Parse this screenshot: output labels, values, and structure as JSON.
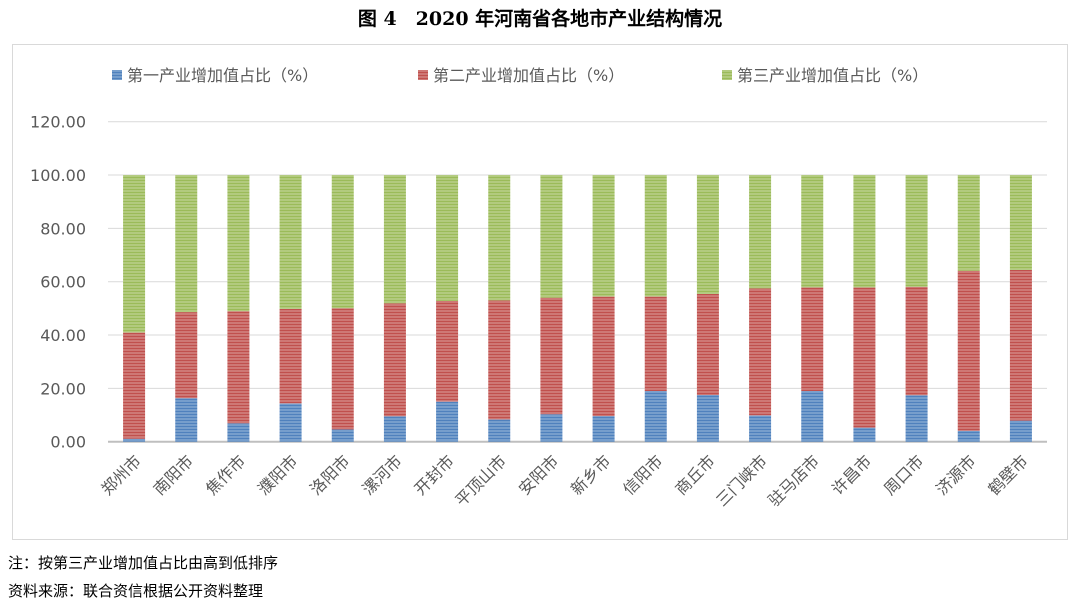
{
  "title": "图 4　2020 年河南省各地市产业结构情况",
  "notes": [
    "注：按第三产业增加值占比由高到低排序",
    "资料来源：联合资信根据公开资料整理"
  ],
  "colors": {
    "primary": "#4f81bd",
    "secondary": "#c0504d",
    "tertiary": "#9bbb59"
  },
  "chart_data": {
    "type": "bar",
    "stacked": true,
    "title": "",
    "xlabel": "",
    "ylabel": "",
    "ylim": [
      0,
      120
    ],
    "yticks": [
      "0.00",
      "20.00",
      "40.00",
      "60.00",
      "80.00",
      "100.00",
      "120.00"
    ],
    "grid": true,
    "legend_position": "top",
    "categories": [
      "郑州市",
      "南阳市",
      "焦作市",
      "濮阳市",
      "洛阳市",
      "漯河市",
      "开封市",
      "平顶山市",
      "安阳市",
      "新乡市",
      "信阳市",
      "商丘市",
      "三门峡市",
      "驻马店市",
      "许昌市",
      "周口市",
      "济源市",
      "鹤壁市"
    ],
    "series": [
      {
        "name": "第一产业增加值占比（%）",
        "values": [
          1.1,
          16.3,
          6.9,
          14.4,
          4.6,
          9.5,
          15.0,
          8.3,
          10.3,
          9.6,
          19.0,
          17.5,
          9.9,
          19.0,
          5.3,
          17.4,
          4.1,
          7.9
        ]
      },
      {
        "name": "第二产业增加值占比（%）",
        "values": [
          39.8,
          32.3,
          42.0,
          35.4,
          45.4,
          42.4,
          37.8,
          44.7,
          43.7,
          44.8,
          35.4,
          37.9,
          47.6,
          38.8,
          52.5,
          40.7,
          60.0,
          56.5
        ]
      },
      {
        "name": "第三产业增加值占比（%）",
        "values": [
          59.1,
          51.4,
          51.1,
          50.2,
          50.0,
          48.1,
          47.2,
          47.0,
          46.0,
          45.6,
          45.6,
          44.6,
          42.5,
          42.2,
          42.2,
          41.9,
          35.9,
          35.6
        ]
      }
    ]
  }
}
